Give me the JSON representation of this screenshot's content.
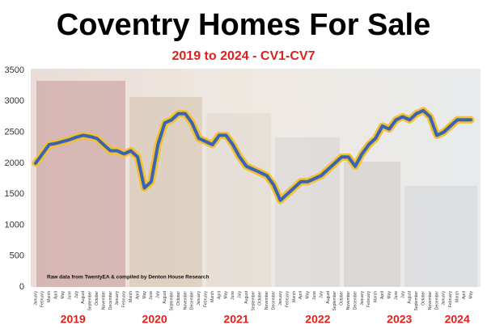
{
  "chart_data": {
    "type": "line",
    "title": "Coventry Homes For Sale",
    "subtitle": "2019 to 2024 - CV1-CV7",
    "annotation": "Raw data from TwentyEA & compiled by Denton House Research",
    "categories": [
      "January",
      "February",
      "March",
      "April",
      "May",
      "June",
      "July",
      "August",
      "September",
      "October",
      "November",
      "December",
      "January",
      "February",
      "March",
      "April",
      "May",
      "June",
      "July",
      "August",
      "September",
      "October",
      "November",
      "December",
      "January",
      "February",
      "March",
      "April",
      "May",
      "June",
      "July",
      "August",
      "September",
      "October",
      "November",
      "December",
      "January",
      "February",
      "March",
      "April",
      "May",
      "June",
      "July",
      "August",
      "September",
      "October",
      "November",
      "December",
      "January",
      "February",
      "March",
      "April",
      "May",
      "June",
      "July",
      "August",
      "September",
      "October",
      "November",
      "December",
      "January",
      "February",
      "March",
      "April",
      "May"
    ],
    "years": [
      "2019",
      "2020",
      "2021",
      "2022",
      "2023",
      "2024"
    ],
    "values": [
      2000,
      2150,
      2300,
      2320,
      2350,
      2380,
      2420,
      2450,
      2430,
      2400,
      2300,
      2200,
      2200,
      2150,
      2200,
      2100,
      1600,
      1700,
      2300,
      2650,
      2700,
      2800,
      2800,
      2650,
      2400,
      2350,
      2300,
      2450,
      2450,
      2300,
      2100,
      1950,
      1900,
      1850,
      1800,
      1650,
      1400,
      1500,
      1600,
      1700,
      1700,
      1750,
      1800,
      1900,
      2000,
      2100,
      2100,
      1950,
      2150,
      2300,
      2400,
      2600,
      2550,
      2700,
      2750,
      2700,
      2800,
      2850,
      2750,
      2450,
      2500,
      2600,
      2700,
      2700,
      2700
    ],
    "color": "#3a63b8",
    "glow_color": "#f2c12e",
    "ylim": [
      0,
      3500
    ],
    "yticks": [
      0,
      500,
      1000,
      1500,
      2000,
      2500,
      3000,
      3500
    ]
  }
}
